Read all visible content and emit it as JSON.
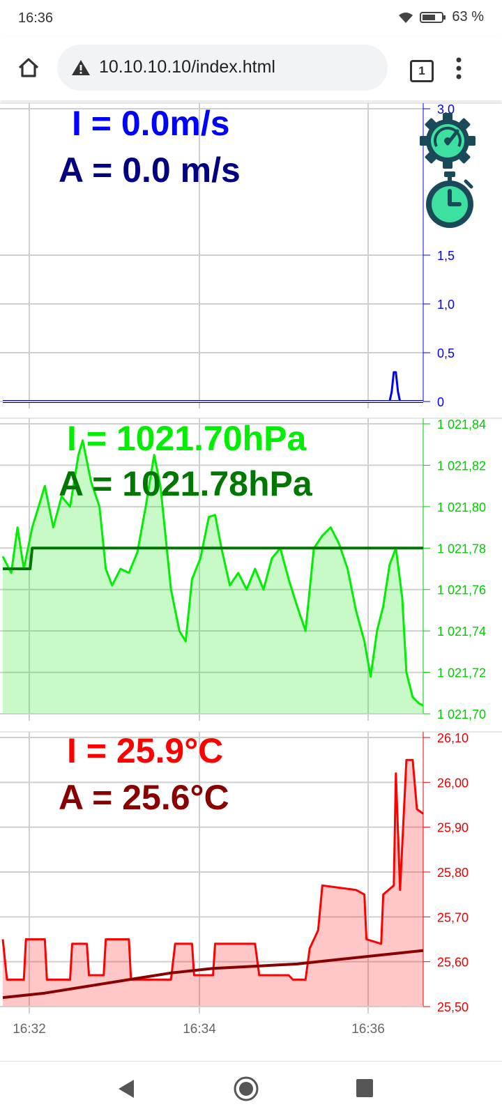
{
  "status_bar": {
    "time": "16:36",
    "battery": "63 %",
    "wifi_icon": "wifi-icon",
    "battery_icon": "battery-icon"
  },
  "browser": {
    "url": "10.10.10.10/index.html",
    "tab_count": "1",
    "home_icon": "home-icon",
    "warning_icon": "warning-icon",
    "menu_icon": "more-vert-icon"
  },
  "readouts": {
    "speed_instant": "I = 0.0m/s",
    "speed_average": "A = 0.0 m/s",
    "pressure_instant": "I = 1021.70hPa",
    "pressure_average": "A = 1021.78hPa",
    "temp_instant": "I = 25.9°C",
    "temp_average": "A = 25.6°C"
  },
  "colors": {
    "speed_instant": "#0000ff",
    "speed_average": "#000080",
    "pressure_instant": "#00ee00",
    "pressure_average": "#007700",
    "temp_instant": "#ff0000",
    "temp_average": "#880000"
  },
  "icons": {
    "settings": "gear-gauge-icon",
    "timer": "stopwatch-icon"
  },
  "chart_data": [
    {
      "type": "line",
      "xlim": [
        0,
        1
      ],
      "ylim": [
        0,
        3.0
      ],
      "y_ticks": [
        "0",
        "0,5",
        "1,0",
        "1,5",
        "3,0"
      ],
      "y_tick_values": [
        0,
        0.5,
        1.0,
        1.5,
        3.0
      ],
      "x_ticks": [],
      "series": [
        {
          "values": [
            [
              0,
              0
            ],
            [
              0.92,
              0
            ],
            [
              0.925,
              0.1
            ],
            [
              0.93,
              0.3
            ],
            [
              0.935,
              0.3
            ],
            [
              0.94,
              0.1
            ],
            [
              0.945,
              0
            ],
            [
              1,
              0
            ]
          ]
        },
        {
          "values": [
            [
              0,
              0
            ],
            [
              1,
              0
            ]
          ]
        }
      ]
    },
    {
      "type": "area",
      "xlim": [
        0,
        1
      ],
      "ylim": [
        1021.7,
        1021.84
      ],
      "y_ticks": [
        "1 021,70",
        "1 021,72",
        "1 021,74",
        "1 021,76",
        "1 021,78",
        "1 021,80",
        "1 021,82",
        "1 021,84"
      ],
      "y_tick_values": [
        1021.7,
        1021.72,
        1021.74,
        1021.76,
        1021.78,
        1021.8,
        1021.82,
        1021.84
      ],
      "series": [
        {
          "values": [
            [
              0,
              1021.776
            ],
            [
              0.02,
              1021.768
            ],
            [
              0.035,
              1021.79
            ],
            [
              0.05,
              1021.77
            ],
            [
              0.07,
              1021.79
            ],
            [
              0.085,
              1021.8
            ],
            [
              0.1,
              1021.81
            ],
            [
              0.12,
              1021.79
            ],
            [
              0.14,
              1021.805
            ],
            [
              0.16,
              1021.8
            ],
            [
              0.18,
              1021.825
            ],
            [
              0.19,
              1021.832
            ],
            [
              0.21,
              1021.812
            ],
            [
              0.23,
              1021.8
            ],
            [
              0.245,
              1021.77
            ],
            [
              0.26,
              1021.762
            ],
            [
              0.28,
              1021.77
            ],
            [
              0.3,
              1021.768
            ],
            [
              0.32,
              1021.778
            ],
            [
              0.34,
              1021.8
            ],
            [
              0.36,
              1021.825
            ],
            [
              0.375,
              1021.81
            ],
            [
              0.39,
              1021.78
            ],
            [
              0.4,
              1021.76
            ],
            [
              0.42,
              1021.74
            ],
            [
              0.435,
              1021.735
            ],
            [
              0.45,
              1021.765
            ],
            [
              0.47,
              1021.775
            ],
            [
              0.49,
              1021.795
            ],
            [
              0.505,
              1021.796
            ],
            [
              0.52,
              1021.78
            ],
            [
              0.54,
              1021.762
            ],
            [
              0.56,
              1021.768
            ],
            [
              0.58,
              1021.76
            ],
            [
              0.6,
              1021.77
            ],
            [
              0.62,
              1021.76
            ],
            [
              0.64,
              1021.775
            ],
            [
              0.66,
              1021.78
            ],
            [
              0.68,
              1021.765
            ],
            [
              0.7,
              1021.752
            ],
            [
              0.72,
              1021.74
            ],
            [
              0.74,
              1021.78
            ],
            [
              0.76,
              1021.786
            ],
            [
              0.78,
              1021.79
            ],
            [
              0.8,
              1021.782
            ],
            [
              0.82,
              1021.77
            ],
            [
              0.84,
              1021.75
            ],
            [
              0.86,
              1021.735
            ],
            [
              0.875,
              1021.718
            ],
            [
              0.89,
              1021.74
            ],
            [
              0.905,
              1021.752
            ],
            [
              0.92,
              1021.772
            ],
            [
              0.935,
              1021.78
            ],
            [
              0.95,
              1021.756
            ],
            [
              0.96,
              1021.72
            ],
            [
              0.975,
              1021.708
            ],
            [
              0.99,
              1021.705
            ],
            [
              1,
              1021.704
            ]
          ]
        },
        {
          "values": [
            [
              0,
              1021.77
            ],
            [
              0.065,
              1021.77
            ],
            [
              0.07,
              1021.78
            ],
            [
              1,
              1021.78
            ]
          ]
        }
      ]
    },
    {
      "type": "area",
      "xlim": [
        0,
        1
      ],
      "ylim": [
        25.5,
        26.1
      ],
      "y_ticks": [
        "25,50",
        "25,60",
        "25,70",
        "25,80",
        "25,90",
        "26,00",
        "26,10"
      ],
      "y_tick_values": [
        25.5,
        25.6,
        25.7,
        25.8,
        25.9,
        26.0,
        26.1
      ],
      "x_ticks": [
        "16:32",
        "16:34",
        "16:36"
      ],
      "x_tick_positions": [
        0.07,
        0.47,
        0.87
      ],
      "series": [
        {
          "values": [
            [
              0,
              25.65
            ],
            [
              0.01,
              25.56
            ],
            [
              0.05,
              25.56
            ],
            [
              0.055,
              25.65
            ],
            [
              0.1,
              25.65
            ],
            [
              0.105,
              25.56
            ],
            [
              0.16,
              25.56
            ],
            [
              0.165,
              25.64
            ],
            [
              0.2,
              25.64
            ],
            [
              0.205,
              25.57
            ],
            [
              0.24,
              25.57
            ],
            [
              0.245,
              25.65
            ],
            [
              0.3,
              25.65
            ],
            [
              0.305,
              25.56
            ],
            [
              0.4,
              25.56
            ],
            [
              0.41,
              25.64
            ],
            [
              0.45,
              25.64
            ],
            [
              0.455,
              25.57
            ],
            [
              0.5,
              25.57
            ],
            [
              0.505,
              25.64
            ],
            [
              0.6,
              25.64
            ],
            [
              0.61,
              25.57
            ],
            [
              0.68,
              25.57
            ],
            [
              0.69,
              25.56
            ],
            [
              0.72,
              25.56
            ],
            [
              0.73,
              25.63
            ],
            [
              0.75,
              25.67
            ],
            [
              0.76,
              25.77
            ],
            [
              0.84,
              25.76
            ],
            [
              0.86,
              25.75
            ],
            [
              0.865,
              25.65
            ],
            [
              0.9,
              25.64
            ],
            [
              0.905,
              25.75
            ],
            [
              0.93,
              25.77
            ],
            [
              0.935,
              26.02
            ],
            [
              0.945,
              25.76
            ],
            [
              0.96,
              26.05
            ],
            [
              0.975,
              26.05
            ],
            [
              0.985,
              25.94
            ],
            [
              1,
              25.93
            ]
          ]
        },
        {
          "values": [
            [
              0,
              25.52
            ],
            [
              0.1,
              25.53
            ],
            [
              0.2,
              25.545
            ],
            [
              0.3,
              25.56
            ],
            [
              0.4,
              25.575
            ],
            [
              0.5,
              25.585
            ],
            [
              0.6,
              25.59
            ],
            [
              0.7,
              25.595
            ],
            [
              0.8,
              25.605
            ],
            [
              0.9,
              25.615
            ],
            [
              1,
              25.625
            ]
          ]
        }
      ]
    }
  ]
}
